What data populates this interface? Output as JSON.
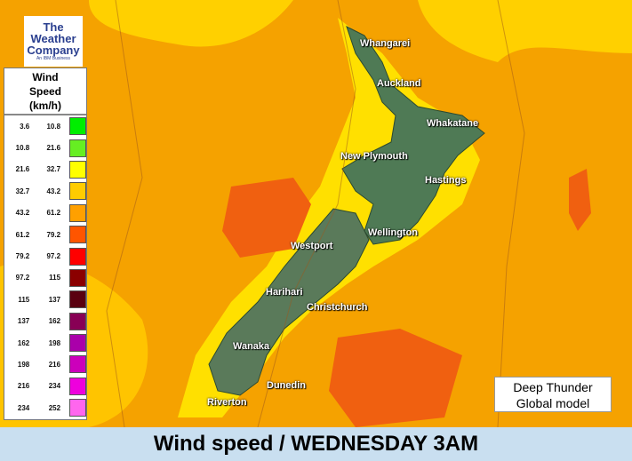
{
  "logo": {
    "line1": "The",
    "line2": "Weather",
    "line3": "Company",
    "tagline": "An IBM Business"
  },
  "legend": {
    "title_line1": "Wind",
    "title_line2": "Speed",
    "title_line3": "(km/h)",
    "rows": [
      {
        "from": "3.6",
        "to": "10.8",
        "color": "#00ee00"
      },
      {
        "from": "10.8",
        "to": "21.6",
        "color": "#66ee22"
      },
      {
        "from": "21.6",
        "to": "32.7",
        "color": "#ffff00"
      },
      {
        "from": "32.7",
        "to": "43.2",
        "color": "#ffcc00"
      },
      {
        "from": "43.2",
        "to": "61.2",
        "color": "#ffa000"
      },
      {
        "from": "61.2",
        "to": "79.2",
        "color": "#ff5500"
      },
      {
        "from": "79.2",
        "to": "97.2",
        "color": "#ff0000"
      },
      {
        "from": "97.2",
        "to": "115",
        "color": "#8b0000"
      },
      {
        "from": "115",
        "to": "137",
        "color": "#5a0010"
      },
      {
        "from": "137",
        "to": "162",
        "color": "#880055"
      },
      {
        "from": "162",
        "to": "198",
        "color": "#aa00aa"
      },
      {
        "from": "198",
        "to": "216",
        "color": "#cc00bb"
      },
      {
        "from": "216",
        "to": "234",
        "color": "#ee00dd"
      },
      {
        "from": "234",
        "to": "252",
        "color": "#ff66ee"
      }
    ]
  },
  "cities": [
    "Whangarei",
    "Auckland",
    "Whakatane",
    "New Plymouth",
    "Hastings",
    "Wellington",
    "Westport",
    "Harihari",
    "Christchurch",
    "Wanaka",
    "Dunedin",
    "Riverton"
  ],
  "model": {
    "line1": "Deep Thunder",
    "line2": "Global model"
  },
  "banner": "Wind speed / WEDNESDAY 3AM"
}
